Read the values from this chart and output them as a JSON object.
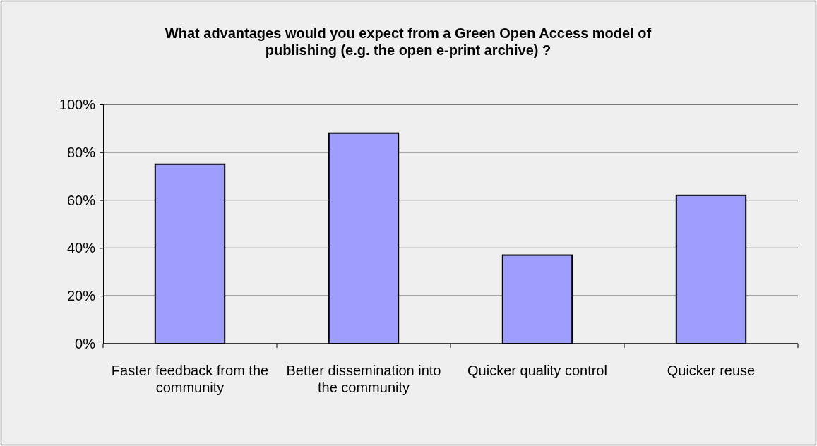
{
  "chart_data": {
    "type": "bar",
    "title": "What advantages would you expect from a Green Open Access model of publishing (e.g. the open e-print archive) ?",
    "categories": [
      "Faster feedback from the community",
      "Better dissemination into the community",
      "Quicker quality control",
      "Quicker reuse"
    ],
    "values": [
      75,
      88,
      37,
      62
    ],
    "color": "#9e9eff",
    "ylim": [
      0,
      100
    ],
    "yticks": [
      {
        "value": 0,
        "label": "0%"
      },
      {
        "value": 20,
        "label": "20%"
      },
      {
        "value": 40,
        "label": "40%"
      },
      {
        "value": 60,
        "label": "60%"
      },
      {
        "value": 80,
        "label": "80%"
      },
      {
        "value": 100,
        "label": "100%"
      }
    ],
    "grid": "y"
  }
}
